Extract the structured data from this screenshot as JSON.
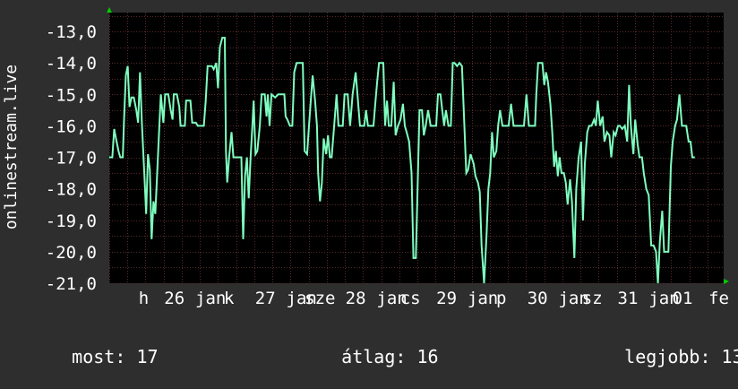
{
  "colors": {
    "background": "#2e2e2e",
    "plot_background": "#000000",
    "grid": "#5a2a2a",
    "line": "#7fffc0",
    "axis_arrow": "#00cc00",
    "text": "#ffffff"
  },
  "stats": {
    "current_label": "most:",
    "current_value": "17",
    "average_label": "átlag:",
    "average_value": "16",
    "best_label": "legjobb:",
    "best_value": "13"
  },
  "chart_data": {
    "type": "line",
    "title": "",
    "ylabel": "onlinestream.live",
    "xlabel": "",
    "ylim": [
      -21.0,
      -12.4
    ],
    "y_ticks": [
      "-13,0",
      "-14,0",
      "-15,0",
      "-16,0",
      "-17,0",
      "-18,0",
      "-19,0",
      "-20,0",
      "-21,0"
    ],
    "y_tick_values": [
      -13,
      -14,
      -15,
      -16,
      -17,
      -18,
      -19,
      -20,
      -21
    ],
    "x_range": [
      0,
      100
    ],
    "x_ticks": [
      {
        "label": "h",
        "x": 5.6
      },
      {
        "label": "26",
        "x": 10.6
      },
      {
        "label": "jan",
        "x": 16.5
      },
      {
        "label": "k",
        "x": 19.5
      },
      {
        "label": "27",
        "x": 25.4
      },
      {
        "label": "jan",
        "x": 31.3
      },
      {
        "label": "sze",
        "x": 34.3
      },
      {
        "label": "28",
        "x": 40.1
      },
      {
        "label": "jan",
        "x": 46.0
      },
      {
        "label": "cs",
        "x": 49.0
      },
      {
        "label": "29",
        "x": 54.9
      },
      {
        "label": "jan",
        "x": 60.8
      },
      {
        "label": "p",
        "x": 63.8
      },
      {
        "label": "30",
        "x": 69.7
      },
      {
        "label": "jan",
        "x": 75.6
      },
      {
        "label": "sz",
        "x": 78.6
      },
      {
        "label": "31",
        "x": 84.4
      },
      {
        "label": "jan",
        "x": 90.3
      },
      {
        "label": "01",
        "x": 93.3
      },
      {
        "label": "fe",
        "x": 99.2
      }
    ],
    "series": [
      {
        "values": [
          [
            0,
            -17
          ],
          [
            0.5,
            -17
          ],
          [
            0.8,
            -16.1
          ],
          [
            1.1,
            -16.4
          ],
          [
            1.5,
            -16.8
          ],
          [
            1.8,
            -17
          ],
          [
            2.2,
            -17
          ],
          [
            2.4,
            -15.8
          ],
          [
            2.7,
            -14.4
          ],
          [
            3.0,
            -14.1
          ],
          [
            3.3,
            -15.4
          ],
          [
            3.6,
            -15.1
          ],
          [
            4.0,
            -15.1
          ],
          [
            4.4,
            -15.5
          ],
          [
            4.7,
            -15.9
          ],
          [
            5.0,
            -14.3
          ],
          [
            5.3,
            -15.9
          ],
          [
            5.7,
            -17.5
          ],
          [
            6.0,
            -18.8
          ],
          [
            6.3,
            -16.9
          ],
          [
            6.6,
            -17.4
          ],
          [
            6.9,
            -19.6
          ],
          [
            7.2,
            -18.4
          ],
          [
            7.5,
            -18.8
          ],
          [
            7.8,
            -17.5
          ],
          [
            8.1,
            -16.2
          ],
          [
            8.4,
            -15.0
          ],
          [
            8.8,
            -15.9
          ],
          [
            9.1,
            -15.0
          ],
          [
            9.6,
            -15.0
          ],
          [
            10.0,
            -15.5
          ],
          [
            10.3,
            -15.8
          ],
          [
            10.5,
            -15.0
          ],
          [
            11.0,
            -15.0
          ],
          [
            11.4,
            -15.4
          ],
          [
            11.6,
            -16.0
          ],
          [
            12.3,
            -16.0
          ],
          [
            12.5,
            -15.2
          ],
          [
            13.2,
            -15.2
          ],
          [
            13.5,
            -15.9
          ],
          [
            14.1,
            -15.9
          ],
          [
            14.4,
            -16.0
          ],
          [
            15.4,
            -16.0
          ],
          [
            15.7,
            -15.2
          ],
          [
            16.0,
            -14.1
          ],
          [
            16.7,
            -14.1
          ],
          [
            17.0,
            -14.2
          ],
          [
            17.4,
            -14.0
          ],
          [
            17.7,
            -14.8
          ],
          [
            18.0,
            -13.5
          ],
          [
            18.4,
            -13.2
          ],
          [
            18.8,
            -13.2
          ],
          [
            19.0,
            -16.8
          ],
          [
            19.2,
            -17.8
          ],
          [
            19.5,
            -17.0
          ],
          [
            19.9,
            -16.2
          ],
          [
            20.2,
            -17.0
          ],
          [
            21.5,
            -17.0
          ],
          [
            21.8,
            -19.6
          ],
          [
            22.1,
            -17.6
          ],
          [
            22.4,
            -17.0
          ],
          [
            22.7,
            -18.3
          ],
          [
            23.0,
            -17.0
          ],
          [
            23.3,
            -16.0
          ],
          [
            23.5,
            -15.2
          ],
          [
            23.8,
            -16.9
          ],
          [
            24.1,
            -16.8
          ],
          [
            24.5,
            -16.0
          ],
          [
            24.8,
            -15.0
          ],
          [
            25.3,
            -15.0
          ],
          [
            25.6,
            -15.7
          ],
          [
            25.8,
            -15.0
          ],
          [
            26.1,
            -16.0
          ],
          [
            26.4,
            -15.0
          ],
          [
            27.0,
            -15.1
          ],
          [
            27.5,
            -15.0
          ],
          [
            28.0,
            -15.0
          ],
          [
            28.5,
            -15.0
          ],
          [
            28.7,
            -15.7
          ],
          [
            29.0,
            -15.8
          ],
          [
            29.4,
            -16.0
          ],
          [
            29.8,
            -16.0
          ],
          [
            30.1,
            -14.3
          ],
          [
            30.5,
            -14.0
          ],
          [
            31.5,
            -14.0
          ],
          [
            31.8,
            -16.8
          ],
          [
            32.2,
            -16.9
          ],
          [
            32.5,
            -16.0
          ],
          [
            32.8,
            -15.2
          ],
          [
            33.1,
            -14.4
          ],
          [
            33.5,
            -15.2
          ],
          [
            33.8,
            -16.0
          ],
          [
            34.0,
            -17.5
          ],
          [
            34.3,
            -18.4
          ],
          [
            34.6,
            -17.8
          ],
          [
            34.9,
            -16.4
          ],
          [
            35.3,
            -16.9
          ],
          [
            35.6,
            -16.3
          ],
          [
            35.9,
            -17.0
          ],
          [
            36.2,
            -17.0
          ],
          [
            36.6,
            -16.0
          ],
          [
            37.0,
            -15.0
          ],
          [
            37.3,
            -16.0
          ],
          [
            37.6,
            -16.0
          ],
          [
            38.0,
            -16.0
          ],
          [
            38.3,
            -15.0
          ],
          [
            38.8,
            -15.0
          ],
          [
            39.2,
            -16.0
          ],
          [
            39.6,
            -15.0
          ],
          [
            40.1,
            -14.3
          ],
          [
            40.4,
            -15.0
          ],
          [
            40.8,
            -16.0
          ],
          [
            41.5,
            -16.0
          ],
          [
            41.8,
            -15.5
          ],
          [
            42.1,
            -16.0
          ],
          [
            43.0,
            -16.0
          ],
          [
            43.3,
            -15.3
          ],
          [
            43.6,
            -14.6
          ],
          [
            43.9,
            -14.0
          ],
          [
            44.6,
            -14.0
          ],
          [
            44.9,
            -16.0
          ],
          [
            45.2,
            -15.2
          ],
          [
            45.5,
            -16.0
          ],
          [
            45.9,
            -16.0
          ],
          [
            46.3,
            -14.6
          ],
          [
            46.6,
            -16.3
          ],
          [
            47.0,
            -16.0
          ],
          [
            47.4,
            -15.8
          ],
          [
            47.8,
            -15.3
          ],
          [
            48.1,
            -16.0
          ],
          [
            48.4,
            -16.2
          ],
          [
            48.8,
            -16.5
          ],
          [
            49.2,
            -17.5
          ],
          [
            49.5,
            -20.2
          ],
          [
            49.9,
            -20.2
          ],
          [
            50.3,
            -17.0
          ],
          [
            50.5,
            -15.5
          ],
          [
            50.9,
            -15.5
          ],
          [
            51.2,
            -16.3
          ],
          [
            51.5,
            -16.0
          ],
          [
            51.9,
            -15.5
          ],
          [
            52.3,
            -16.0
          ],
          [
            52.6,
            -16.0
          ],
          [
            53.2,
            -16.0
          ],
          [
            53.5,
            -15.0
          ],
          [
            53.9,
            -15.0
          ],
          [
            54.2,
            -15.5
          ],
          [
            54.5,
            -16.0
          ],
          [
            54.8,
            -15.5
          ],
          [
            55.2,
            -16.0
          ],
          [
            55.6,
            -16.0
          ],
          [
            55.9,
            -14.0
          ],
          [
            56.2,
            -14.0
          ],
          [
            56.6,
            -14.1
          ],
          [
            57.0,
            -14.0
          ],
          [
            57.4,
            -14.1
          ],
          [
            57.8,
            -16.0
          ],
          [
            58.1,
            -17.5
          ],
          [
            58.4,
            -17.4
          ],
          [
            58.8,
            -16.9
          ],
          [
            59.3,
            -17.2
          ],
          [
            59.6,
            -17.6
          ],
          [
            60.0,
            -17.8
          ],
          [
            60.3,
            -18.1
          ],
          [
            60.6,
            -19.8
          ],
          [
            61.0,
            -21.0
          ],
          [
            61.4,
            -19.5
          ],
          [
            61.7,
            -18.0
          ],
          [
            62.0,
            -17.5
          ],
          [
            62.3,
            -16.2
          ],
          [
            62.6,
            -17.0
          ],
          [
            63.0,
            -16.8
          ],
          [
            63.3,
            -16.0
          ],
          [
            63.6,
            -15.5
          ],
          [
            64.0,
            -16.0
          ],
          [
            64.3,
            -16.0
          ],
          [
            64.7,
            -16.0
          ],
          [
            65.0,
            -16.0
          ],
          [
            65.4,
            -15.3
          ],
          [
            65.8,
            -16.0
          ],
          [
            66.2,
            -16.0
          ],
          [
            66.6,
            -16.0
          ],
          [
            67.0,
            -16.0
          ],
          [
            67.5,
            -16.0
          ],
          [
            67.9,
            -15.0
          ],
          [
            68.3,
            -16.0
          ],
          [
            68.6,
            -16.0
          ],
          [
            68.9,
            -16.0
          ],
          [
            69.3,
            -16.0
          ],
          [
            69.5,
            -15.0
          ],
          [
            69.8,
            -14.0
          ],
          [
            70.5,
            -14.0
          ],
          [
            70.8,
            -14.7
          ],
          [
            71.1,
            -14.3
          ],
          [
            71.4,
            -14.6
          ],
          [
            71.8,
            -15.3
          ],
          [
            72.1,
            -16.2
          ],
          [
            72.4,
            -17.3
          ],
          [
            72.7,
            -16.8
          ],
          [
            73.0,
            -17.6
          ],
          [
            73.3,
            -17.0
          ],
          [
            73.6,
            -17.5
          ],
          [
            74.0,
            -17.5
          ],
          [
            74.3,
            -17.8
          ],
          [
            74.6,
            -18.5
          ],
          [
            75.0,
            -17.7
          ],
          [
            75.3,
            -18.4
          ],
          [
            75.7,
            -20.2
          ],
          [
            76.0,
            -18.0
          ],
          [
            76.4,
            -17.0
          ],
          [
            76.8,
            -16.5
          ],
          [
            77.1,
            -19.0
          ],
          [
            77.4,
            -17.2
          ],
          [
            77.8,
            -16.2
          ],
          [
            78.1,
            -16.0
          ],
          [
            78.5,
            -16.0
          ],
          [
            78.9,
            -15.8
          ],
          [
            79.2,
            -16.0
          ],
          [
            79.5,
            -15.2
          ],
          [
            79.9,
            -16.0
          ],
          [
            80.3,
            -15.7
          ],
          [
            80.6,
            -16.5
          ],
          [
            81.0,
            -16.2
          ],
          [
            81.4,
            -16.3
          ],
          [
            81.7,
            -17.0
          ],
          [
            82.1,
            -16.2
          ],
          [
            82.4,
            -16.3
          ],
          [
            82.8,
            -16.0
          ],
          [
            83.1,
            -16.0
          ],
          [
            83.5,
            -16.1
          ],
          [
            83.9,
            -16.0
          ],
          [
            84.3,
            -16.5
          ],
          [
            84.6,
            -14.7
          ],
          [
            84.9,
            -16.0
          ],
          [
            85.3,
            -16.9
          ],
          [
            85.6,
            -15.8
          ],
          [
            86.0,
            -16.6
          ],
          [
            86.3,
            -17.0
          ],
          [
            86.7,
            -17.0
          ],
          [
            87.0,
            -17.5
          ],
          [
            87.4,
            -18.0
          ],
          [
            87.8,
            -18.2
          ],
          [
            88.2,
            -19.8
          ],
          [
            88.6,
            -19.8
          ],
          [
            89.0,
            -20.0
          ],
          [
            89.3,
            -21.0
          ],
          [
            89.6,
            -19.7
          ],
          [
            90.0,
            -18.7
          ],
          [
            90.3,
            -20.0
          ],
          [
            90.7,
            -20.0
          ],
          [
            91.0,
            -20.0
          ],
          [
            91.4,
            -17.3
          ],
          [
            91.7,
            -16.5
          ],
          [
            92.1,
            -16.0
          ],
          [
            92.4,
            -15.8
          ],
          [
            92.8,
            -15.0
          ],
          [
            93.2,
            -16.0
          ],
          [
            93.5,
            -16.0
          ],
          [
            93.9,
            -16.0
          ],
          [
            94.3,
            -16.5
          ],
          [
            94.6,
            -16.5
          ],
          [
            94.9,
            -17.0
          ],
          [
            95.3,
            -17.0
          ]
        ]
      }
    ]
  }
}
